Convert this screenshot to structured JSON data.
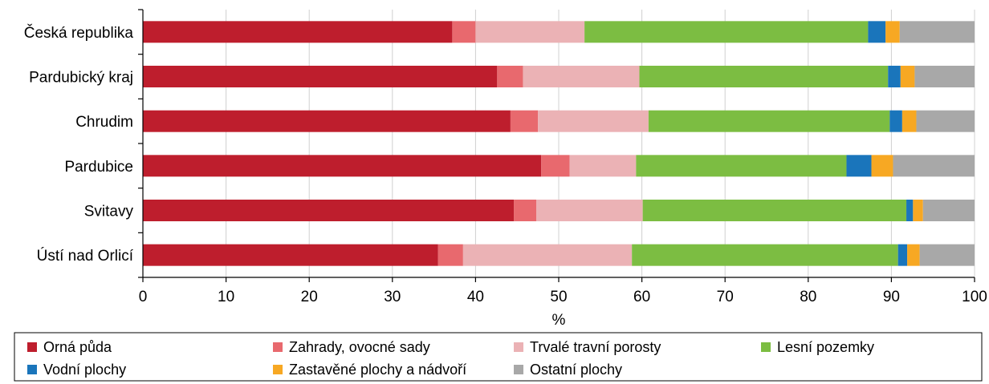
{
  "chart_data": {
    "type": "bar",
    "orientation": "horizontal",
    "stacked": true,
    "categories": [
      "Česká republika",
      "Pardubický kraj",
      "Chrudim",
      "Pardubice",
      "Svitavy",
      "Ústí nad Orlicí"
    ],
    "series": [
      {
        "name": "Orná půda",
        "color": "#be1e2d",
        "values": [
          37.2,
          42.6,
          44.2,
          47.9,
          44.6,
          35.5
        ]
      },
      {
        "name": "Zahrady, ovocné sady",
        "color": "#e8696e",
        "values": [
          2.8,
          3.1,
          3.3,
          3.4,
          2.7,
          3.0
        ]
      },
      {
        "name": "Trvalé travní porosty",
        "color": "#ebb2b5",
        "values": [
          13.1,
          14.0,
          13.3,
          8.0,
          12.8,
          20.3
        ]
      },
      {
        "name": "Lesní pozemky",
        "color": "#7cbd42",
        "values": [
          34.1,
          29.9,
          29.0,
          25.3,
          31.7,
          32.0
        ]
      },
      {
        "name": "Vodní plochy",
        "color": "#1a75bb",
        "values": [
          2.1,
          1.5,
          1.5,
          3.0,
          0.8,
          1.1
        ]
      },
      {
        "name": "Zastavěné plochy a nádvoří",
        "color": "#f7a823",
        "values": [
          1.7,
          1.7,
          1.7,
          2.6,
          1.2,
          1.5
        ]
      },
      {
        "name": "Ostatní plochy",
        "color": "#a8a8a8",
        "values": [
          9.0,
          7.2,
          7.0,
          9.8,
          6.2,
          6.6
        ]
      }
    ],
    "xlabel": "%",
    "ylabel": "",
    "xlim": [
      0,
      100
    ],
    "x_ticks": [
      "0",
      "10",
      "20",
      "30",
      "40",
      "50",
      "60",
      "70",
      "80",
      "90",
      "100"
    ],
    "grid": "vertical",
    "legend_position": "bottom"
  }
}
